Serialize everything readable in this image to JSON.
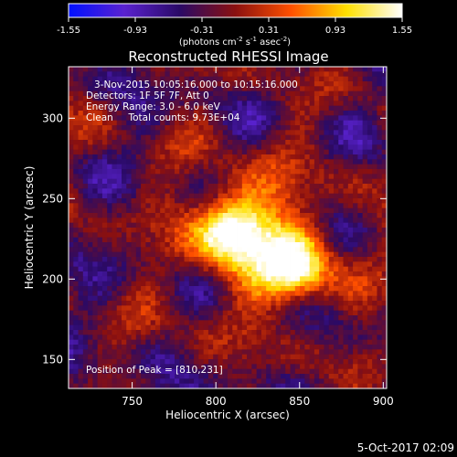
{
  "chart_data": {
    "type": "heatmap",
    "title": "Reconstructed RHESSI Image",
    "xlabel": "Heliocentric X (arcsec)",
    "ylabel": "Heliocentric Y (arcsec)",
    "xlim": [
      712,
      902
    ],
    "ylim": [
      132,
      332
    ],
    "x_ticks": [
      750,
      800,
      850,
      900
    ],
    "y_ticks": [
      150,
      200,
      250,
      300
    ],
    "colorbar": {
      "min": -1.55,
      "max": 1.55,
      "ticks": [
        "-1.55",
        "-0.93",
        "-0.31",
        "0.31",
        "0.93",
        "1.55"
      ],
      "units_main": "(photons cm",
      "units_sup1": "-2",
      "units_mid1": " s",
      "units_sup2": "-1",
      "units_mid2": " asec",
      "units_sup3": "-2",
      "units_end": ")",
      "colors": [
        "#0010ff",
        "#5a22d0",
        "#2a0a66",
        "#8a1010",
        "#ff5000",
        "#ffe000",
        "#ffffff"
      ]
    },
    "peak": {
      "x": 810,
      "y": 231
    },
    "sources": [
      {
        "x": 810,
        "y": 231,
        "amplitude": 1.55
      },
      {
        "x": 848,
        "y": 206,
        "amplitude": 1.45
      }
    ],
    "annotations": [
      "3-Nov-2015 10:05:16.000 to 10:15:16.000",
      "Detectors: 1F 5F 7F, Att 0",
      "Energy Range: 3.0 - 6.0 keV",
      "Clean     Total counts: 9.73E+04"
    ],
    "peak_label": "Position of Peak = [810,231]",
    "footer_date": "5-Oct-2017 02:09"
  }
}
